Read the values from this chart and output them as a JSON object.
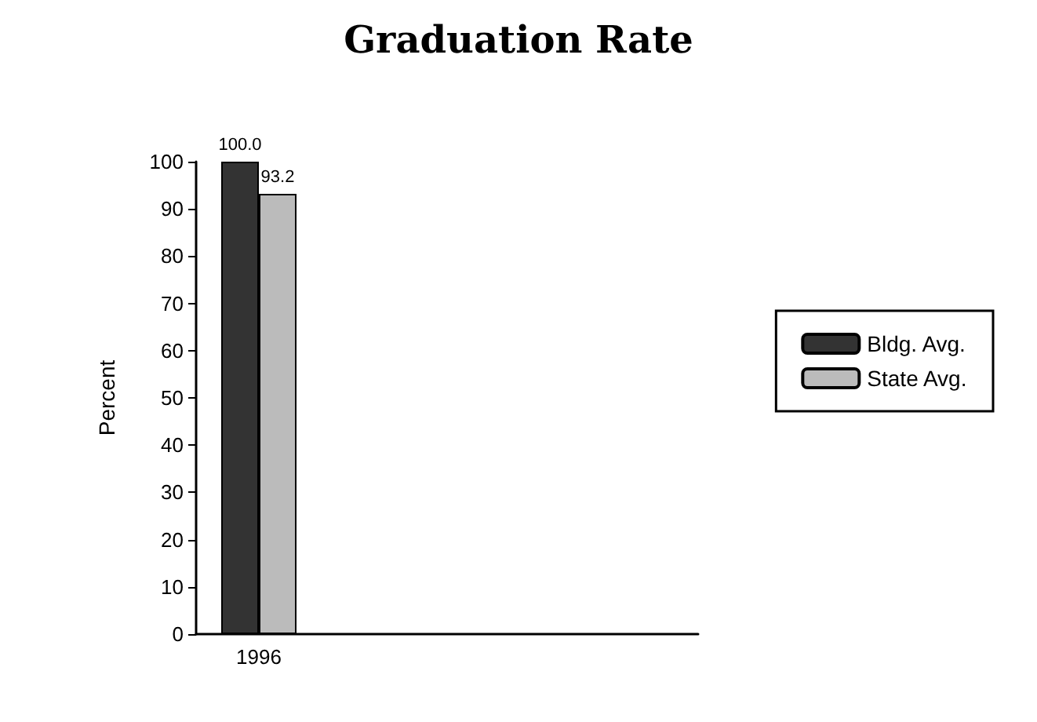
{
  "chart_data": {
    "type": "bar",
    "title": "Graduation Rate",
    "ylabel": "Percent",
    "categories": [
      "1996",
      null,
      null,
      null
    ],
    "series": [
      {
        "name": "Bldg. Avg.",
        "color": "#333333",
        "values": [
          100.0,
          null,
          null,
          null
        ],
        "value_labels": [
          "100.0",
          null,
          null,
          null
        ]
      },
      {
        "name": "State Avg.",
        "color": "#bbbbbb",
        "values": [
          93.2,
          null,
          null,
          null
        ],
        "value_labels": [
          "93.2",
          null,
          null,
          null
        ]
      }
    ],
    "ylim": [
      0,
      100
    ],
    "yticks": [
      0,
      10,
      20,
      30,
      40,
      50,
      60,
      70,
      80,
      90,
      100
    ],
    "grid": false,
    "legend": "right"
  }
}
